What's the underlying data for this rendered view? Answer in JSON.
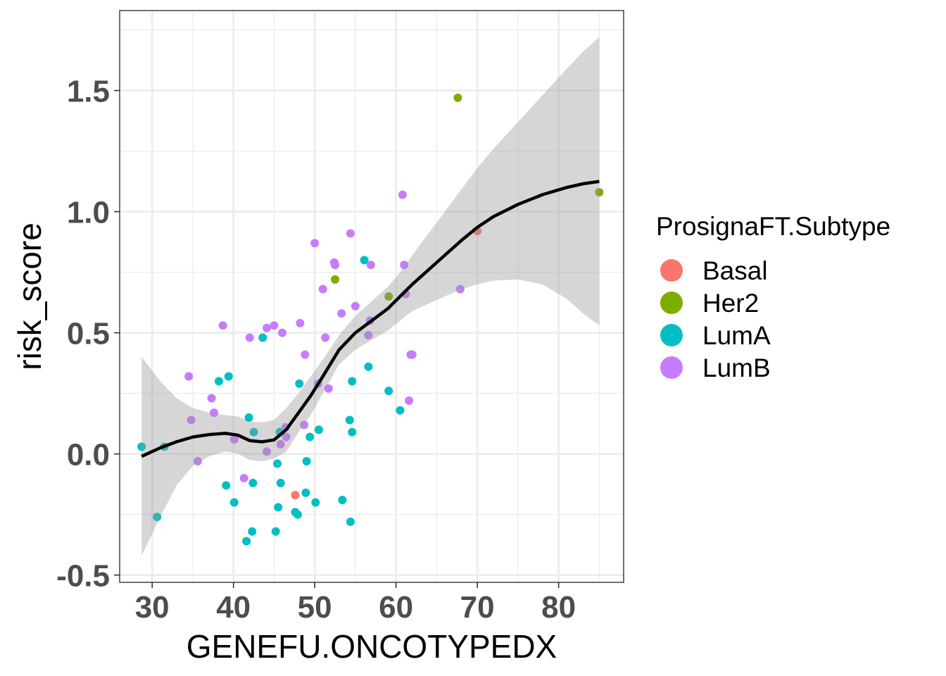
{
  "chart_data": {
    "type": "scatter",
    "xlabel": "GENEFU.ONCOTYPEDX",
    "ylabel": "risk_score",
    "xlim": [
      26,
      88
    ],
    "ylim": [
      -0.53,
      1.83
    ],
    "x_ticks": [
      30,
      40,
      50,
      60,
      70,
      80
    ],
    "x_tick_labels": [
      "30",
      "40",
      "50",
      "60",
      "70",
      "80"
    ],
    "y_ticks": [
      -0.5,
      0.0,
      0.5,
      1.0,
      1.5
    ],
    "y_tick_labels": [
      "-0.5",
      "0.0",
      "0.5",
      "1.0",
      "1.5"
    ],
    "grid": true,
    "legend": {
      "title": "ProsignaFT.Subtype",
      "placement": "right",
      "entries": [
        "Basal",
        "Her2",
        "LumA",
        "LumB"
      ]
    },
    "colors": {
      "Basal": "#F8766D",
      "Her2": "#7CAE00",
      "LumA": "#00BFC4",
      "LumB": "#C77CFF",
      "smooth_line": "#000000",
      "confidence_band": "#999999",
      "grid": "#ebebeb",
      "panel_border": "#333333"
    },
    "series": [
      {
        "name": "Basal",
        "points": [
          [
            47.6,
            -0.17
          ],
          [
            70.0,
            0.92
          ]
        ]
      },
      {
        "name": "Her2",
        "points": [
          [
            67.6,
            1.47
          ],
          [
            85.0,
            1.08
          ],
          [
            52.5,
            0.72
          ],
          [
            59.1,
            0.65
          ]
        ]
      },
      {
        "name": "LumA",
        "points": [
          [
            28.7,
            0.03
          ],
          [
            30.6,
            -0.26
          ],
          [
            31.5,
            0.03
          ],
          [
            38.2,
            0.3
          ],
          [
            39.4,
            0.32
          ],
          [
            39.1,
            -0.13
          ],
          [
            40.1,
            -0.2
          ],
          [
            41.6,
            -0.36
          ],
          [
            41.9,
            0.15
          ],
          [
            42.3,
            -0.32
          ],
          [
            42.4,
            -0.12
          ],
          [
            42.5,
            0.09
          ],
          [
            43.6,
            0.48
          ],
          [
            45.2,
            -0.32
          ],
          [
            45.4,
            -0.04
          ],
          [
            45.5,
            -0.22
          ],
          [
            45.7,
            0.09
          ],
          [
            45.8,
            -0.12
          ],
          [
            47.6,
            -0.24
          ],
          [
            47.9,
            -0.25
          ],
          [
            48.1,
            0.29
          ],
          [
            48.9,
            -0.16
          ],
          [
            49.0,
            -0.03
          ],
          [
            49.4,
            0.07
          ],
          [
            50.1,
            -0.2
          ],
          [
            50.5,
            0.1
          ],
          [
            53.4,
            -0.19
          ],
          [
            54.3,
            0.14
          ],
          [
            54.4,
            -0.28
          ],
          [
            54.6,
            0.3
          ],
          [
            54.6,
            0.09
          ],
          [
            56.1,
            0.8
          ],
          [
            56.6,
            0.36
          ],
          [
            59.1,
            0.26
          ],
          [
            60.5,
            0.18
          ]
        ]
      },
      {
        "name": "LumB",
        "points": [
          [
            34.5,
            0.32
          ],
          [
            34.8,
            0.14
          ],
          [
            35.6,
            -0.03
          ],
          [
            37.3,
            0.23
          ],
          [
            37.6,
            0.17
          ],
          [
            38.7,
            0.53
          ],
          [
            40.1,
            0.06
          ],
          [
            41.3,
            -0.1
          ],
          [
            42.0,
            0.48
          ],
          [
            44.1,
            0.52
          ],
          [
            44.1,
            0.01
          ],
          [
            45.0,
            0.53
          ],
          [
            45.8,
            0.04
          ],
          [
            46.0,
            0.5
          ],
          [
            46.4,
            0.11
          ],
          [
            46.5,
            0.07
          ],
          [
            48.2,
            0.54
          ],
          [
            48.7,
            0.12
          ],
          [
            48.8,
            0.41
          ],
          [
            50.0,
            0.87
          ],
          [
            50.4,
            0.29
          ],
          [
            51.0,
            0.68
          ],
          [
            51.3,
            0.48
          ],
          [
            51.7,
            0.27
          ],
          [
            52.4,
            0.79
          ],
          [
            52.5,
            0.78
          ],
          [
            53.3,
            0.58
          ],
          [
            54.4,
            0.91
          ],
          [
            55.0,
            0.61
          ],
          [
            56.6,
            0.49
          ],
          [
            56.8,
            0.55
          ],
          [
            56.9,
            0.78
          ],
          [
            60.8,
            1.07
          ],
          [
            61.0,
            0.78
          ],
          [
            61.2,
            0.66
          ],
          [
            61.6,
            0.22
          ],
          [
            61.8,
            0.41
          ],
          [
            62.0,
            0.41
          ],
          [
            67.9,
            0.68
          ]
        ]
      }
    ],
    "smooth": {
      "x": [
        28.7,
        31,
        33,
        35,
        37,
        39,
        40.5,
        42,
        43.5,
        45,
        46.5,
        48,
        49.5,
        51,
        53,
        55,
        57,
        59,
        60.5,
        62,
        64,
        66,
        68,
        70,
        72,
        75,
        78,
        81,
        83,
        85
      ],
      "y": [
        -0.01,
        0.025,
        0.05,
        0.07,
        0.08,
        0.085,
        0.078,
        0.055,
        0.05,
        0.058,
        0.1,
        0.17,
        0.24,
        0.32,
        0.43,
        0.5,
        0.55,
        0.6,
        0.65,
        0.7,
        0.76,
        0.82,
        0.88,
        0.935,
        0.98,
        1.03,
        1.07,
        1.1,
        1.115,
        1.125
      ],
      "upper": [
        0.4,
        0.3,
        0.23,
        0.19,
        0.17,
        0.16,
        0.155,
        0.135,
        0.13,
        0.14,
        0.19,
        0.25,
        0.32,
        0.39,
        0.49,
        0.57,
        0.63,
        0.69,
        0.75,
        0.82,
        0.91,
        1.0,
        1.09,
        1.18,
        1.26,
        1.37,
        1.48,
        1.59,
        1.66,
        1.72
      ],
      "lower": [
        -0.42,
        -0.26,
        -0.13,
        -0.05,
        -0.01,
        0.01,
        0.001,
        -0.025,
        -0.03,
        -0.02,
        0.01,
        0.09,
        0.16,
        0.25,
        0.37,
        0.43,
        0.47,
        0.51,
        0.55,
        0.59,
        0.62,
        0.65,
        0.68,
        0.7,
        0.715,
        0.72,
        0.7,
        0.64,
        0.58,
        0.53
      ]
    }
  }
}
